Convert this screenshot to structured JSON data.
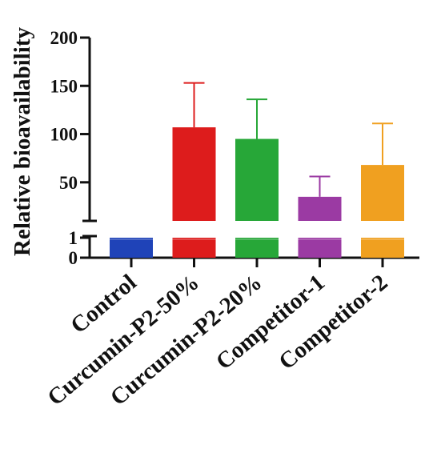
{
  "chart_data": {
    "type": "bar",
    "ylabel": "Relative bioavailability",
    "categories": [
      "Control",
      "Curcumin-P2-50%",
      "Curcumin-P2-20%",
      "Competitor-1",
      "Competitor-2"
    ],
    "values": [
      1,
      107,
      95,
      35,
      68
    ],
    "error_upper": [
      1,
      153,
      136,
      56,
      111
    ],
    "colors": [
      "#1f43b8",
      "#dd1c1c",
      "#27a738",
      "#9b3aa3",
      "#f0a020"
    ],
    "y_axis_broken": true,
    "y_segments": [
      {
        "range": [
          0,
          1
        ],
        "ticks": [
          "0",
          "1"
        ]
      },
      {
        "range": [
          10,
          200
        ],
        "ticks": [
          "50",
          "100",
          "150",
          "200"
        ]
      }
    ],
    "grid": false,
    "legend": "none"
  }
}
